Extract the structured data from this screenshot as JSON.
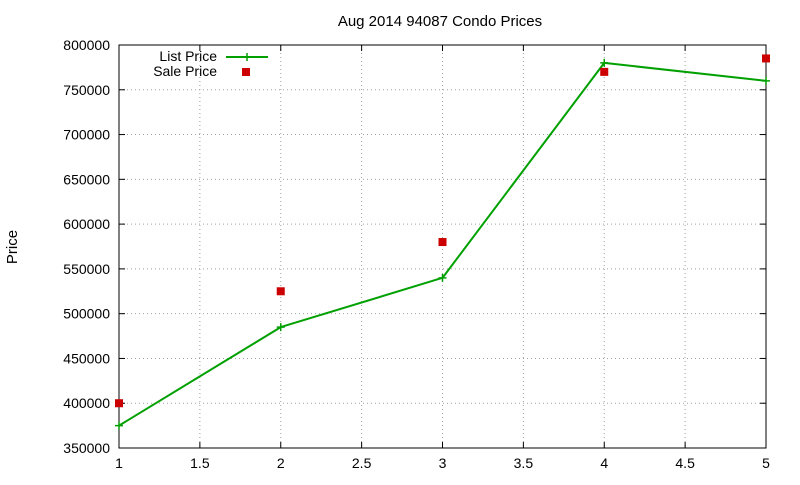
{
  "chart_data": {
    "type": "line",
    "title": "Aug 2014 94087 Condo Prices",
    "xlabel": "",
    "ylabel": "Price",
    "xlim": [
      1,
      5
    ],
    "ylim": [
      350000,
      800000
    ],
    "x_ticks": [
      "1",
      "1.5",
      "2",
      "2.5",
      "3",
      "3.5",
      "4",
      "4.5",
      "5"
    ],
    "y_ticks": [
      "350000",
      "400000",
      "450000",
      "500000",
      "550000",
      "600000",
      "650000",
      "700000",
      "750000",
      "800000"
    ],
    "grid": true,
    "legend_position": "top-left",
    "series": [
      {
        "name": "List Price",
        "style": "line-with-plus-markers",
        "color": "#00a000",
        "x": [
          1,
          2,
          3,
          4,
          5
        ],
        "y": [
          375000,
          485000,
          540000,
          780000,
          760000
        ]
      },
      {
        "name": "Sale Price",
        "style": "square-markers",
        "color": "#cc0000",
        "x": [
          1,
          2,
          3,
          4,
          5
        ],
        "y": [
          400000,
          525000,
          580000,
          770000,
          785000
        ]
      }
    ]
  }
}
